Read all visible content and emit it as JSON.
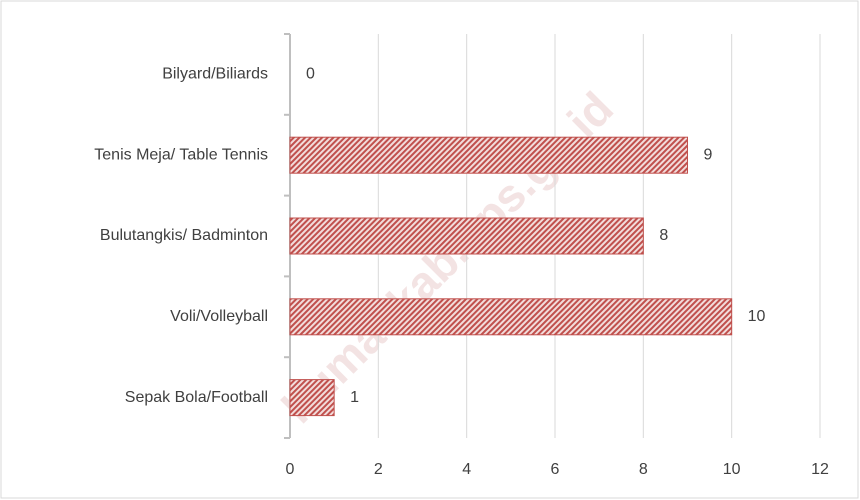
{
  "chart_data": {
    "type": "bar",
    "orientation": "horizontal",
    "categories": [
      "Bilyard/Biliards",
      "Tenis Meja/ Table Tennis",
      "Bulutangkis/ Badminton",
      "Voli/Volleyball",
      "Sepak Bola/Football"
    ],
    "values": [
      0,
      9,
      8,
      10,
      1
    ],
    "color": "#c0504d",
    "xlim": [
      0,
      12
    ],
    "xticks": [
      0,
      2,
      4,
      6,
      8,
      10,
      12
    ],
    "grid": true,
    "watermark": "humaskab.bps.go.id"
  }
}
